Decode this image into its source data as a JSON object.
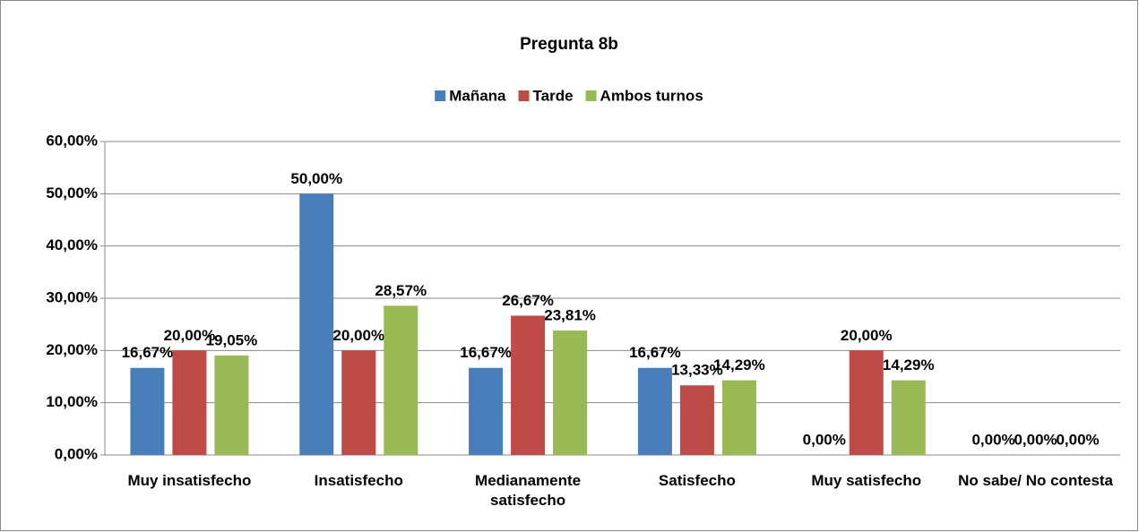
{
  "chart_data": {
    "type": "bar",
    "title": "Pregunta 8b",
    "categories": [
      "Muy insatisfecho",
      "Insatisfecho",
      "Medianamente satisfecho",
      "Satisfecho",
      "Muy satisfecho",
      "No sabe/ No contesta"
    ],
    "series": [
      {
        "name": "Mañana",
        "color": "#4a7ebb",
        "values": [
          16.67,
          50,
          16.67,
          16.67,
          0,
          0
        ],
        "value_labels": [
          "16,67%",
          "50,00%",
          "16,67%",
          "16,67%",
          "0,00%",
          "0,00%"
        ]
      },
      {
        "name": "Tarde",
        "color": "#be4b48",
        "values": [
          20,
          20,
          26.67,
          13.33,
          20,
          0
        ],
        "value_labels": [
          "20,00%",
          "20,00%",
          "26,67%",
          "13,33%",
          "20,00%",
          "0,00%"
        ]
      },
      {
        "name": "Ambos turnos",
        "color": "#98b954",
        "values": [
          19.05,
          28.57,
          23.81,
          14.29,
          14.29,
          0
        ],
        "value_labels": [
          "19,05%",
          "28,57%",
          "23,81%",
          "14,29%",
          "14,29%",
          "0,00%"
        ]
      }
    ],
    "ylim": [
      0,
      60
    ],
    "yticks": [
      {
        "value": 0,
        "label": "0,00%"
      },
      {
        "value": 10,
        "label": "10,00%"
      },
      {
        "value": 20,
        "label": "20,00%"
      },
      {
        "value": 30,
        "label": "30,00%"
      },
      {
        "value": 40,
        "label": "40,00%"
      },
      {
        "value": 50,
        "label": "50,00%"
      },
      {
        "value": 60,
        "label": "60,00%"
      }
    ],
    "grid": true,
    "legend": "top"
  }
}
